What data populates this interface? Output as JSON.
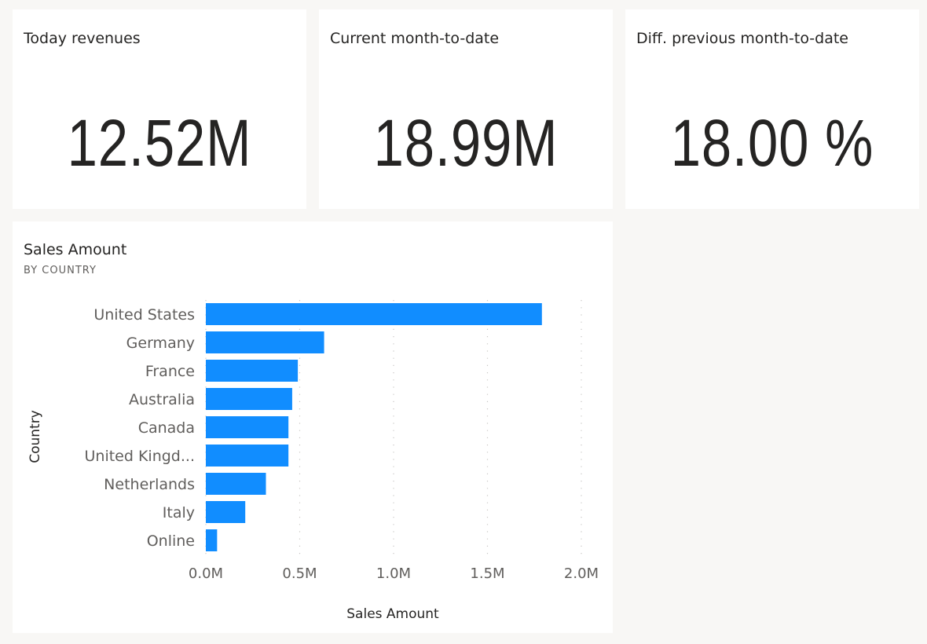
{
  "kpis": [
    {
      "title": "Today revenues",
      "value": "12.52M"
    },
    {
      "title": "Current month-to-date",
      "value": "18.99M"
    },
    {
      "title": "Diff. previous month-to-date",
      "value": "18.00 %"
    }
  ],
  "chart_data": {
    "type": "bar",
    "orientation": "horizontal",
    "title": "Sales Amount",
    "subtitle": "BY COUNTRY",
    "xlabel": "Sales Amount",
    "ylabel": "Country",
    "categories": [
      "United States",
      "Germany",
      "France",
      "Australia",
      "Canada",
      "United Kingd...",
      "Netherlands",
      "Italy",
      "Online"
    ],
    "values": [
      1.79,
      0.63,
      0.49,
      0.46,
      0.44,
      0.44,
      0.32,
      0.21,
      0.06
    ],
    "unit": "M",
    "xlim": [
      0,
      2.0
    ],
    "xticks": [
      0,
      0.5,
      1.0,
      1.5,
      2.0
    ],
    "xtick_labels": [
      "0.0M",
      "0.5M",
      "1.0M",
      "1.5M",
      "2.0M"
    ],
    "grid": true,
    "bar_color": "#118dff"
  }
}
